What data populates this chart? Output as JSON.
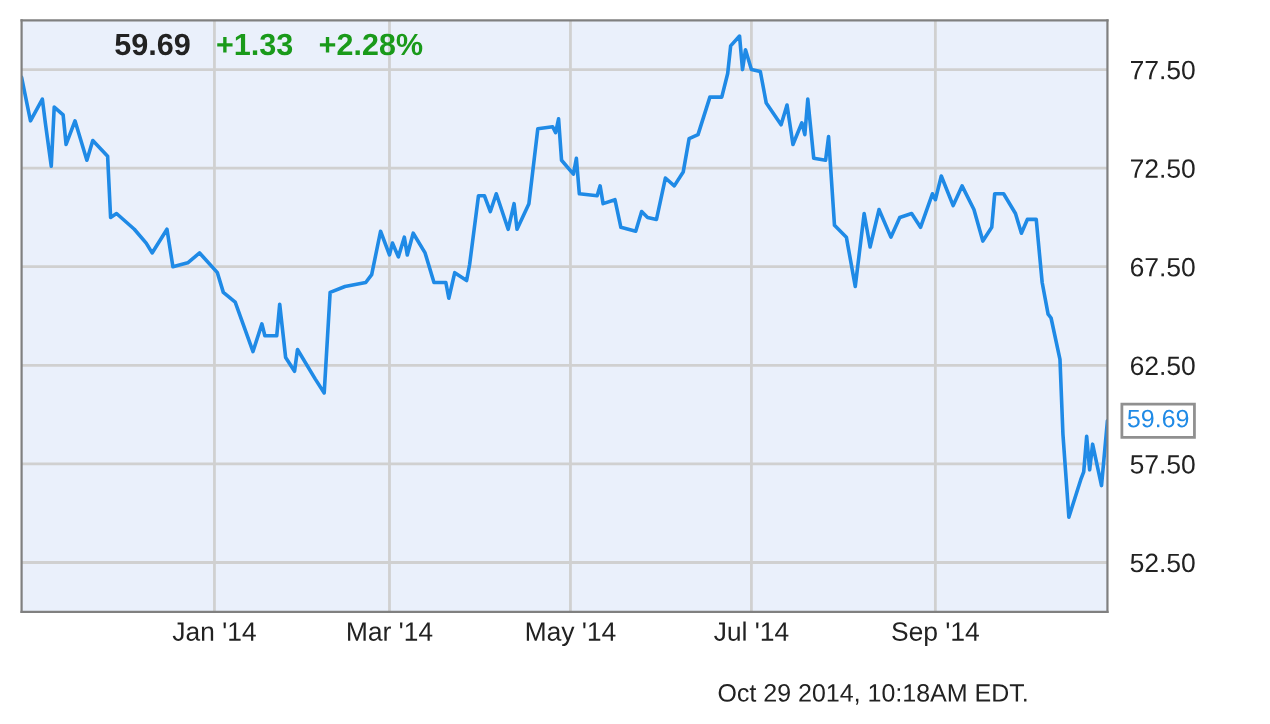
{
  "chart_data": {
    "type": "line",
    "annotations": [
      "59.69",
      "+1.33",
      "+2.28%",
      "Oct 29 2014, 10:18AM EDT.",
      {
        "text": "59.69",
        "x": "2014-10-29",
        "y": 59.69
      }
    ],
    "series": [
      {
        "color": "#1f8ae6",
        "x": [
          "2013-10-28",
          "2013-10-31",
          "2013-11-04",
          "2013-11-05",
          "2013-11-07",
          "2013-11-08",
          "2013-11-11",
          "2013-11-12",
          "2013-11-15",
          "2013-11-19",
          "2013-11-21",
          "2013-11-26",
          "2013-11-27",
          "2013-11-29",
          "2013-12-05",
          "2013-12-09",
          "2013-12-11",
          "2013-12-16",
          "2013-12-18",
          "2013-12-23",
          "2013-12-27",
          "2014-01-02",
          "2014-01-04",
          "2014-01-08",
          "2014-01-14",
          "2014-01-17",
          "2014-01-18",
          "2014-01-22",
          "2014-01-23",
          "2014-01-25",
          "2014-01-28",
          "2014-01-29",
          "2014-02-04",
          "2014-02-07",
          "2014-02-09",
          "2014-02-14",
          "2014-02-21",
          "2014-02-23",
          "2014-02-26",
          "2014-03-01",
          "2014-03-02",
          "2014-03-04",
          "2014-03-06",
          "2014-03-07",
          "2014-03-09",
          "2014-03-13",
          "2014-03-16",
          "2014-03-20",
          "2014-03-21",
          "2014-03-23",
          "2014-03-27",
          "2014-03-28",
          "2014-03-31",
          "2014-04-02",
          "2014-04-04",
          "2014-04-06",
          "2014-04-10",
          "2014-04-12",
          "2014-04-13",
          "2014-04-17",
          "2014-04-20",
          "2014-04-25",
          "2014-04-26",
          "2014-04-27",
          "2014-04-28",
          "2014-05-02",
          "2014-05-03",
          "2014-05-04",
          "2014-05-10",
          "2014-05-11",
          "2014-05-12",
          "2014-05-16",
          "2014-05-18",
          "2014-05-23",
          "2014-05-25",
          "2014-05-27",
          "2014-05-30",
          "2014-06-02",
          "2014-06-05",
          "2014-06-08",
          "2014-06-10",
          "2014-06-13",
          "2014-06-17",
          "2014-06-21",
          "2014-06-23",
          "2014-06-24",
          "2014-06-27",
          "2014-06-28",
          "2014-06-29",
          "2014-07-01",
          "2014-07-04",
          "2014-07-06",
          "2014-07-11",
          "2014-07-13",
          "2014-07-15",
          "2014-07-18",
          "2014-07-19",
          "2014-07-20",
          "2014-07-22",
          "2014-07-26",
          "2014-07-27",
          "2014-07-29",
          "2014-08-02",
          "2014-08-05",
          "2014-08-08",
          "2014-08-10",
          "2014-08-13",
          "2014-08-17",
          "2014-08-20",
          "2014-08-24",
          "2014-08-27",
          "2014-08-31",
          "2014-09-01",
          "2014-09-03",
          "2014-09-07",
          "2014-09-10",
          "2014-09-14",
          "2014-09-17",
          "2014-09-20",
          "2014-09-21",
          "2014-09-24",
          "2014-09-28",
          "2014-09-30",
          "2014-10-02",
          "2014-10-05",
          "2014-10-07",
          "2014-10-09",
          "2014-10-10",
          "2014-10-13",
          "2014-10-14",
          "2014-10-16",
          "2014-10-20",
          "2014-10-21",
          "2014-10-22",
          "2014-10-23",
          "2014-10-24",
          "2014-10-27",
          "2014-10-29"
        ],
        "values": [
          77.1,
          74.9,
          76.0,
          74.8,
          72.6,
          75.6,
          75.2,
          73.7,
          74.9,
          72.9,
          73.9,
          73.1,
          70.0,
          70.2,
          69.4,
          68.7,
          68.2,
          69.4,
          67.5,
          67.7,
          68.2,
          67.2,
          66.2,
          65.7,
          63.2,
          64.6,
          64.0,
          64.0,
          65.6,
          62.9,
          62.2,
          63.3,
          61.8,
          61.1,
          66.2,
          66.5,
          66.7,
          67.1,
          69.3,
          68.1,
          68.7,
          68.0,
          69.0,
          68.1,
          69.2,
          68.2,
          66.7,
          66.7,
          65.9,
          67.2,
          66.8,
          67.6,
          71.1,
          71.1,
          70.3,
          71.2,
          69.4,
          70.7,
          69.4,
          70.7,
          74.5,
          74.6,
          74.3,
          75.0,
          72.9,
          72.2,
          73.0,
          71.2,
          71.1,
          71.6,
          70.7,
          70.9,
          69.5,
          69.3,
          70.3,
          70.0,
          69.9,
          72.0,
          71.6,
          72.3,
          74.0,
          74.2,
          76.1,
          76.1,
          77.3,
          78.7,
          79.2,
          77.5,
          78.5,
          77.5,
          77.4,
          75.8,
          74.7,
          75.7,
          73.7,
          74.8,
          74.2,
          76.0,
          73.0,
          72.9,
          74.1,
          69.6,
          69.0,
          66.5,
          70.2,
          68.5,
          70.4,
          69.0,
          70.0,
          70.2,
          69.5,
          71.2,
          70.9,
          72.1,
          70.6,
          71.6,
          70.4,
          68.8,
          69.5,
          71.2,
          71.2,
          70.2,
          69.2,
          69.9,
          69.9,
          66.7,
          65.1,
          64.9,
          62.8,
          59.0,
          54.8,
          56.7,
          57.1,
          58.9,
          57.2,
          58.5,
          56.4,
          59.69
        ]
      }
    ],
    "xlim": [
      "2013-10-28",
      "2014-10-29"
    ],
    "xticks": [
      {
        "value": "2014-01-01",
        "label": "Jan '14"
      },
      {
        "value": "2014-03-01",
        "label": "Mar '14"
      },
      {
        "value": "2014-05-01",
        "label": "May '14"
      },
      {
        "value": "2014-07-01",
        "label": "Jul '14"
      },
      {
        "value": "2014-09-01",
        "label": "Sep '14"
      }
    ],
    "ylim": [
      50,
      80
    ],
    "yticks": [
      {
        "value": 52.5,
        "label": "52.50"
      },
      {
        "value": 57.5,
        "label": "57.50"
      },
      {
        "value": 62.5,
        "label": "62.50"
      },
      {
        "value": 67.5,
        "label": "67.50"
      },
      {
        "value": 72.5,
        "label": "72.50"
      },
      {
        "value": 77.5,
        "label": "77.50"
      }
    ],
    "grid": true,
    "marker": "none",
    "line_style": "solid"
  }
}
